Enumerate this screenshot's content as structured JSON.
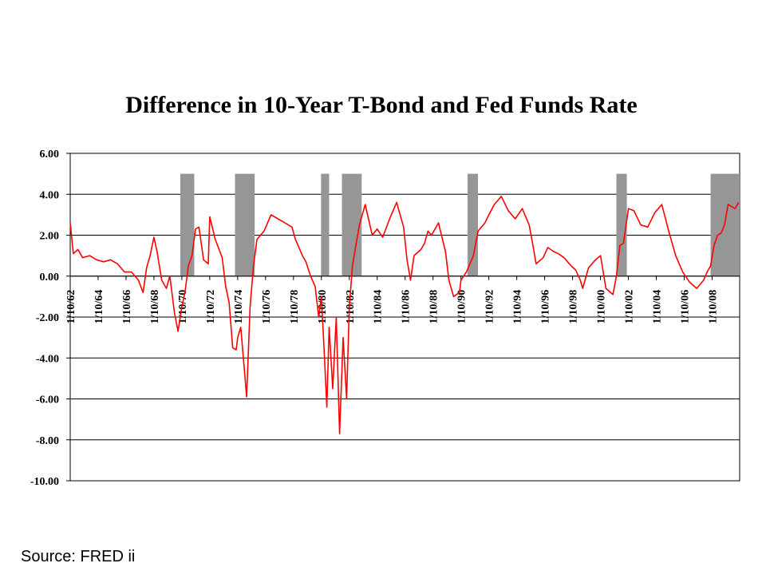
{
  "source_label": "Source: FRED ii",
  "colors": {
    "series": "#ff0000",
    "recession": "#969696",
    "grid": "#000000"
  },
  "chart_data": {
    "type": "line",
    "title": "Difference in 10-Year T-Bond and Fed Funds Rate",
    "xlabel": "",
    "ylabel": "",
    "ylim": [
      -10,
      6
    ],
    "xlim": [
      "1962-01-10",
      "2009-12-31"
    ],
    "grid": "horizontal",
    "legend": "none",
    "yticks": [
      "6.00",
      "4.00",
      "2.00",
      "0.00",
      "-2.00",
      "-4.00",
      "-6.00",
      "-8.00",
      "-10.00"
    ],
    "xticks": [
      {
        "label": "1/10/62",
        "date": "1962-01-10"
      },
      {
        "label": "1/10/64",
        "date": "1964-01-10"
      },
      {
        "label": "1/10/66",
        "date": "1966-01-10"
      },
      {
        "label": "1/10/68",
        "date": "1968-01-10"
      },
      {
        "label": "1/10/70",
        "date": "1970-01-10"
      },
      {
        "label": "1/10/72",
        "date": "1972-01-10"
      },
      {
        "label": "1/10/74",
        "date": "1974-01-10"
      },
      {
        "label": "1/10/76",
        "date": "1976-01-10"
      },
      {
        "label": "1/10/78",
        "date": "1978-01-10"
      },
      {
        "label": "1/10/80",
        "date": "1980-01-10"
      },
      {
        "label": "1/10/82",
        "date": "1982-01-10"
      },
      {
        "label": "1/10/84",
        "date": "1984-01-10"
      },
      {
        "label": "1/10/86",
        "date": "1986-01-10"
      },
      {
        "label": "1/10/88",
        "date": "1988-01-10"
      },
      {
        "label": "1/10/90",
        "date": "1990-01-10"
      },
      {
        "label": "1/10/92",
        "date": "1992-01-10"
      },
      {
        "label": "1/10/94",
        "date": "1994-01-10"
      },
      {
        "label": "1/10/96",
        "date": "1996-01-10"
      },
      {
        "label": "1/10/98",
        "date": "1998-01-10"
      },
      {
        "label": "1/10/00",
        "date": "2000-01-10"
      },
      {
        "label": "1/10/02",
        "date": "2002-01-10"
      },
      {
        "label": "1/10/04",
        "date": "2004-01-10"
      },
      {
        "label": "1/10/06",
        "date": "2006-01-10"
      },
      {
        "label": "1/10/08",
        "date": "2008-01-10"
      }
    ],
    "recession_bars": [
      {
        "start": "1969-12-01",
        "end": "1970-11-30",
        "height": 5.0
      },
      {
        "start": "1973-11-01",
        "end": "1975-03-31",
        "height": 5.0
      },
      {
        "start": "1980-01-01",
        "end": "1980-07-31",
        "height": 5.0
      },
      {
        "start": "1981-07-01",
        "end": "1982-11-30",
        "height": 5.0
      },
      {
        "start": "1990-07-01",
        "end": "1991-03-31",
        "height": 5.0
      },
      {
        "start": "2001-03-01",
        "end": "2001-11-30",
        "height": 5.0
      },
      {
        "start": "2007-12-01",
        "end": "2009-12-31",
        "height": 5.0
      }
    ],
    "series": [
      {
        "points": [
          [
            "1962-01-10",
            2.6
          ],
          [
            "1962-04-01",
            1.1
          ],
          [
            "1962-08-01",
            1.3
          ],
          [
            "1962-12-01",
            0.9
          ],
          [
            "1963-06-01",
            1.0
          ],
          [
            "1963-12-01",
            0.8
          ],
          [
            "1964-06-01",
            0.7
          ],
          [
            "1964-12-01",
            0.8
          ],
          [
            "1965-06-01",
            0.6
          ],
          [
            "1965-12-01",
            0.2
          ],
          [
            "1966-06-01",
            0.2
          ],
          [
            "1966-12-01",
            -0.2
          ],
          [
            "1967-04-01",
            -0.8
          ],
          [
            "1967-07-01",
            0.4
          ],
          [
            "1967-10-01",
            1.0
          ],
          [
            "1968-01-10",
            1.9
          ],
          [
            "1968-04-01",
            1.2
          ],
          [
            "1968-08-01",
            -0.2
          ],
          [
            "1968-12-01",
            -0.6
          ],
          [
            "1969-03-01",
            0.0
          ],
          [
            "1969-07-01",
            -1.8
          ],
          [
            "1969-10-01",
            -2.7
          ],
          [
            "1970-01-10",
            -1.5
          ],
          [
            "1970-04-01",
            -0.8
          ],
          [
            "1970-07-01",
            0.5
          ],
          [
            "1970-10-01",
            1.0
          ],
          [
            "1971-01-01",
            2.3
          ],
          [
            "1971-04-01",
            2.4
          ],
          [
            "1971-08-01",
            0.8
          ],
          [
            "1971-12-01",
            0.6
          ],
          [
            "1972-01-10",
            2.9
          ],
          [
            "1972-06-01",
            1.8
          ],
          [
            "1972-12-01",
            0.9
          ],
          [
            "1973-03-01",
            -0.5
          ],
          [
            "1973-06-01",
            -1.3
          ],
          [
            "1973-09-01",
            -3.5
          ],
          [
            "1973-12-01",
            -3.6
          ],
          [
            "1974-01-10",
            -3.0
          ],
          [
            "1974-04-01",
            -2.5
          ],
          [
            "1974-07-01",
            -4.5
          ],
          [
            "1974-09-01",
            -5.9
          ],
          [
            "1974-12-01",
            -1.5
          ],
          [
            "1975-03-01",
            0.5
          ],
          [
            "1975-06-01",
            1.8
          ],
          [
            "1975-12-01",
            2.2
          ],
          [
            "1976-06-01",
            3.0
          ],
          [
            "1976-12-01",
            2.8
          ],
          [
            "1977-06-01",
            2.6
          ],
          [
            "1977-12-01",
            2.4
          ],
          [
            "1978-03-01",
            1.8
          ],
          [
            "1978-09-01",
            1.0
          ],
          [
            "1978-12-01",
            0.7
          ],
          [
            "1979-04-01",
            0.0
          ],
          [
            "1979-08-01",
            -0.5
          ],
          [
            "1979-11-01",
            -2.0
          ],
          [
            "1980-01-10",
            -1.0
          ],
          [
            "1980-04-01",
            -4.0
          ],
          [
            "1980-06-01",
            -6.4
          ],
          [
            "1980-08-01",
            -2.5
          ],
          [
            "1980-11-01",
            -5.5
          ],
          [
            "1981-02-01",
            -2.0
          ],
          [
            "1981-05-01",
            -7.7
          ],
          [
            "1981-08-01",
            -3.0
          ],
          [
            "1981-11-01",
            -6.0
          ],
          [
            "1982-01-10",
            -1.5
          ],
          [
            "1982-04-01",
            0.5
          ],
          [
            "1982-07-01",
            1.5
          ],
          [
            "1982-10-01",
            2.5
          ],
          [
            "1983-03-01",
            3.5
          ],
          [
            "1983-09-01",
            2.0
          ],
          [
            "1984-01-10",
            2.3
          ],
          [
            "1984-06-01",
            1.9
          ],
          [
            "1984-12-01",
            2.8
          ],
          [
            "1985-06-01",
            3.6
          ],
          [
            "1985-12-01",
            2.4
          ],
          [
            "1986-03-01",
            0.8
          ],
          [
            "1986-06-01",
            -0.2
          ],
          [
            "1986-09-01",
            1.0
          ],
          [
            "1987-03-01",
            1.3
          ],
          [
            "1987-06-01",
            1.6
          ],
          [
            "1987-09-01",
            2.2
          ],
          [
            "1987-12-01",
            2.0
          ],
          [
            "1988-06-01",
            2.6
          ],
          [
            "1988-12-01",
            1.2
          ],
          [
            "1989-03-01",
            -0.2
          ],
          [
            "1989-07-01",
            -1.0
          ],
          [
            "1989-12-01",
            -0.8
          ],
          [
            "1990-01-10",
            -0.2
          ],
          [
            "1990-06-01",
            0.2
          ],
          [
            "1990-09-01",
            0.6
          ],
          [
            "1990-12-01",
            1.0
          ],
          [
            "1991-04-01",
            2.2
          ],
          [
            "1991-10-01",
            2.6
          ],
          [
            "1992-01-10",
            3.0
          ],
          [
            "1992-06-01",
            3.5
          ],
          [
            "1992-12-01",
            3.9
          ],
          [
            "1993-06-01",
            3.2
          ],
          [
            "1993-12-01",
            2.8
          ],
          [
            "1994-06-01",
            3.3
          ],
          [
            "1994-12-01",
            2.5
          ],
          [
            "1995-03-01",
            1.6
          ],
          [
            "1995-06-01",
            0.6
          ],
          [
            "1995-12-01",
            0.9
          ],
          [
            "1996-04-01",
            1.4
          ],
          [
            "1996-09-01",
            1.2
          ],
          [
            "1997-01-01",
            1.1
          ],
          [
            "1997-06-01",
            0.9
          ],
          [
            "1997-12-01",
            0.5
          ],
          [
            "1998-04-01",
            0.3
          ],
          [
            "1998-08-01",
            -0.2
          ],
          [
            "1998-10-01",
            -0.6
          ],
          [
            "1999-03-01",
            0.4
          ],
          [
            "1999-09-01",
            0.8
          ],
          [
            "2000-01-10",
            1.0
          ],
          [
            "2000-06-01",
            -0.6
          ],
          [
            "2000-12-01",
            -0.9
          ],
          [
            "2001-03-01",
            0.0
          ],
          [
            "2001-06-01",
            1.5
          ],
          [
            "2001-09-01",
            1.6
          ],
          [
            "2002-01-10",
            3.3
          ],
          [
            "2002-06-01",
            3.2
          ],
          [
            "2002-12-01",
            2.5
          ],
          [
            "2003-06-01",
            2.4
          ],
          [
            "2003-12-01",
            3.1
          ],
          [
            "2004-06-01",
            3.5
          ],
          [
            "2004-12-01",
            2.2
          ],
          [
            "2005-06-01",
            1.0
          ],
          [
            "2005-12-01",
            0.2
          ],
          [
            "2006-06-01",
            -0.3
          ],
          [
            "2006-12-01",
            -0.6
          ],
          [
            "2007-06-01",
            -0.2
          ],
          [
            "2007-09-01",
            0.2
          ],
          [
            "2007-12-01",
            0.5
          ],
          [
            "2008-03-01",
            1.5
          ],
          [
            "2008-06-01",
            2.0
          ],
          [
            "2008-09-01",
            2.1
          ],
          [
            "2008-12-01",
            2.5
          ],
          [
            "2009-03-01",
            3.5
          ],
          [
            "2009-06-01",
            3.4
          ],
          [
            "2009-09-01",
            3.3
          ],
          [
            "2009-12-01",
            3.6
          ]
        ]
      }
    ]
  }
}
